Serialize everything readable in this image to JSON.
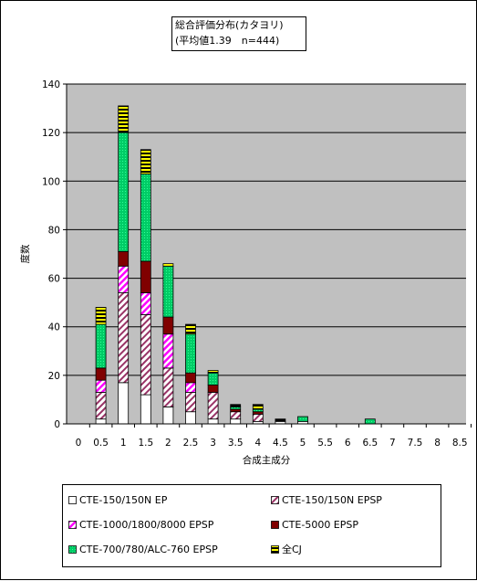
{
  "chart_data": {
    "type": "bar",
    "stacked": true,
    "title": [
      "総合評価分布(カタヨリ)",
      "(平均値1.39　n=444)"
    ],
    "xlabel": "合成主成分",
    "ylabel": "度数",
    "ylim": [
      0,
      140
    ],
    "yticks": [
      0,
      20,
      40,
      60,
      80,
      100,
      120,
      140
    ],
    "grid": "horizontal",
    "legend_position": "bottom",
    "categories": [
      "0",
      "0.5",
      "1",
      "1.5",
      "2",
      "2.5",
      "3",
      "3.5",
      "4",
      "4.5",
      "5",
      "5.5",
      "6",
      "6.5",
      "7",
      "7.5",
      "8",
      "8.5"
    ],
    "series": [
      {
        "name": "CTE-150/150N EP",
        "fill": "#ffffff",
        "values": [
          0,
          2,
          17,
          12,
          7,
          5,
          2,
          2,
          1,
          1,
          1,
          0,
          0,
          0,
          0,
          0,
          0,
          0
        ]
      },
      {
        "name": "CTE-150/150N EPSP",
        "fill": "hatch-purple",
        "values": [
          0,
          11,
          37,
          33,
          16,
          8,
          11,
          3,
          3,
          0,
          0,
          0,
          0,
          0,
          0,
          0,
          0,
          0
        ]
      },
      {
        "name": "CTE-1000/1800/8000 EPSP",
        "fill": "hatch-magenta",
        "values": [
          0,
          5,
          11,
          9,
          14,
          4,
          0,
          0,
          0,
          0,
          0,
          0,
          0,
          0,
          0,
          0,
          0,
          0
        ]
      },
      {
        "name": "CTE-5000 EPSP",
        "fill": "#800000",
        "values": [
          0,
          5,
          6,
          13,
          7,
          4,
          3,
          1,
          1,
          0,
          0,
          0,
          0,
          0,
          0,
          0,
          0,
          0
        ]
      },
      {
        "name": "CTE-700/780/ALC-760 EPSP",
        "fill": "#00cc66",
        "values": [
          0,
          18,
          49,
          36,
          21,
          16,
          5,
          1,
          1,
          0,
          2,
          0,
          0,
          2,
          0,
          0,
          0,
          0
        ]
      },
      {
        "name": "全CJ",
        "fill": "hatch-yellow",
        "values": [
          0,
          7,
          11,
          10,
          1,
          4,
          1,
          1,
          2,
          1,
          0,
          0,
          0,
          0,
          0,
          0,
          0,
          0
        ]
      }
    ]
  }
}
